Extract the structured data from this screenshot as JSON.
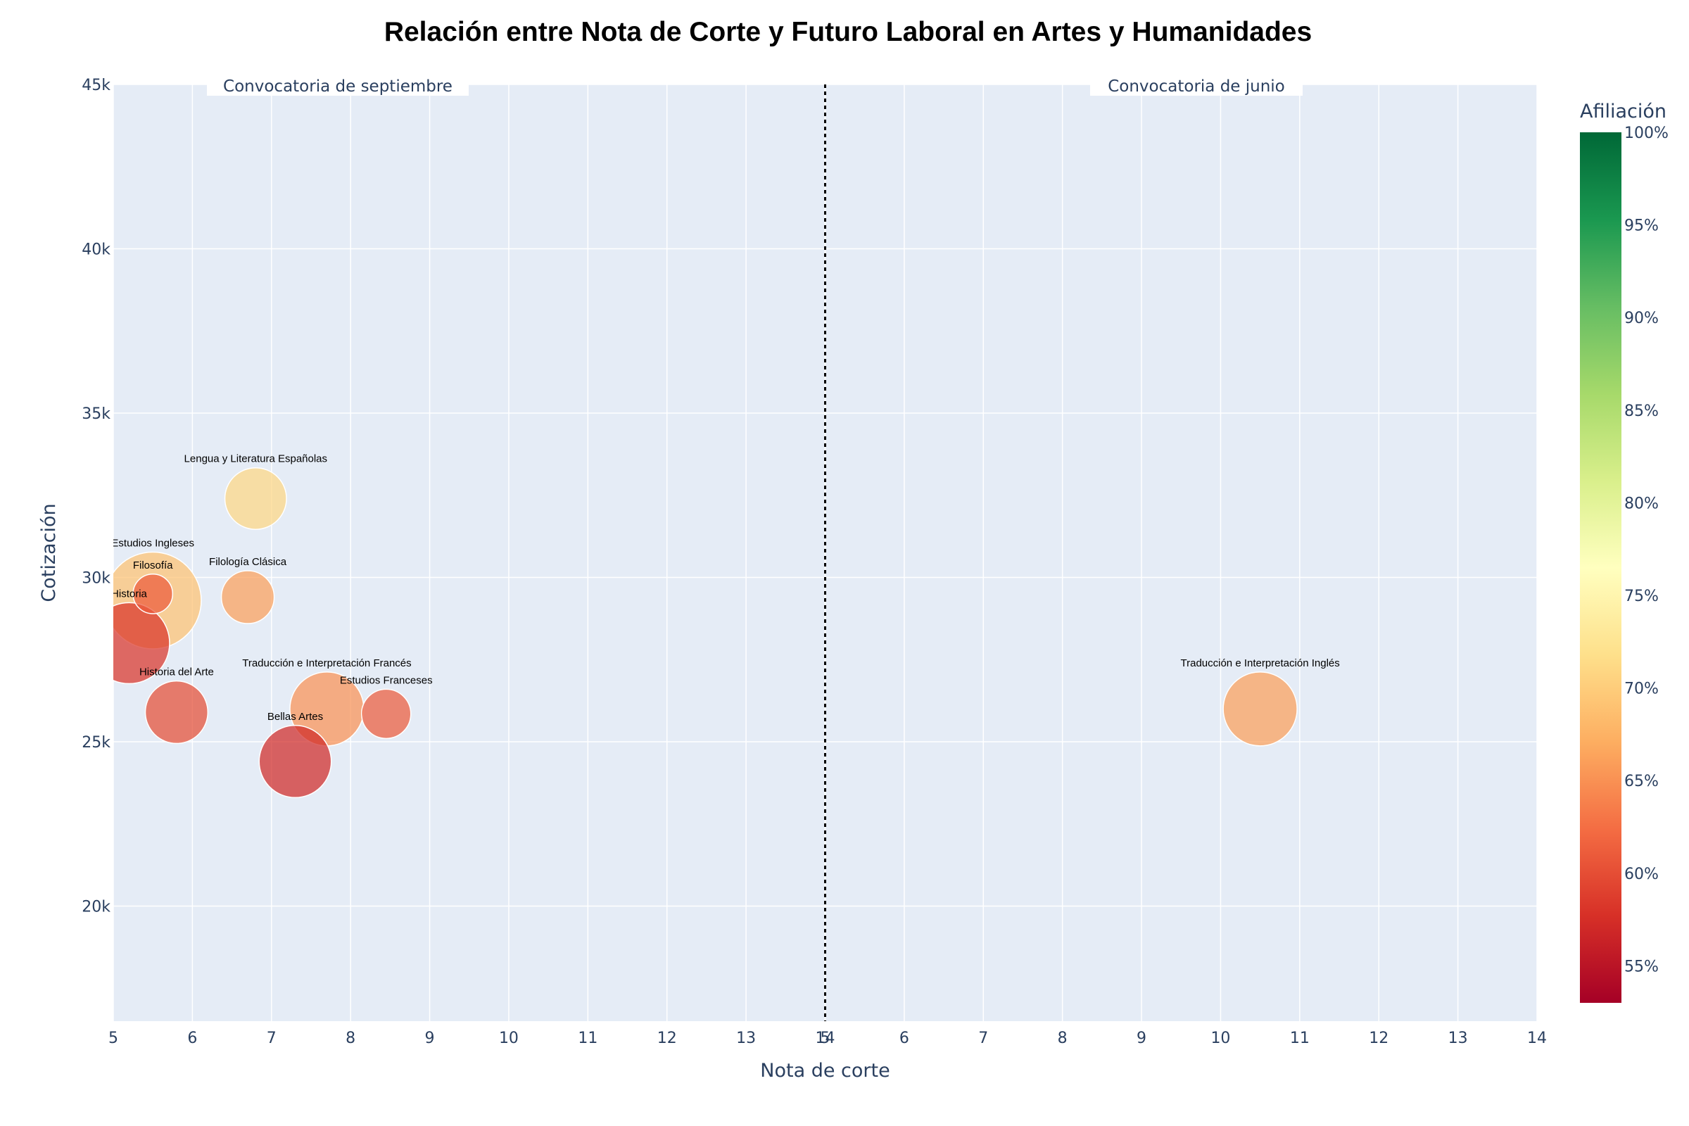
{
  "chart_data": {
    "type": "scatter",
    "title": "Relación entre Nota de Corte y Futuro Laboral en Artes y Humanidades",
    "xlabel": "Nota de corte",
    "ylabel": "Cotización",
    "x_tick_labels": [
      "5",
      "6",
      "7",
      "8",
      "9",
      "10",
      "11",
      "12",
      "13",
      "14",
      "5",
      "6",
      "7",
      "8",
      "9",
      "10",
      "11",
      "12",
      "13",
      "14"
    ],
    "y_ticks": [
      20000,
      25000,
      30000,
      35000,
      40000,
      45000
    ],
    "y_tick_labels": [
      "20k",
      "25k",
      "30k",
      "35k",
      "40k",
      "45k"
    ],
    "ylim": [
      16500,
      45000
    ],
    "sections": [
      {
        "label": "Convocatoria de septiembre",
        "xlim": [
          5,
          14
        ]
      },
      {
        "label": "Convocatoria de junio",
        "xlim": [
          5,
          14
        ]
      }
    ],
    "colorbar": {
      "title": "Afiliación",
      "min": 53,
      "max": 100,
      "ticks": [
        55,
        60,
        65,
        70,
        75,
        80,
        85,
        90,
        95,
        100
      ],
      "tick_labels": [
        "55%",
        "60%",
        "65%",
        "70%",
        "75%",
        "80%",
        "85%",
        "90%",
        "95%",
        "100%"
      ],
      "colorscale": [
        "#a50026",
        "#d73027",
        "#f46d43",
        "#fdae61",
        "#fee08b",
        "#ffffbf",
        "#d9ef8b",
        "#a6d96a",
        "#66bd63",
        "#1a9850",
        "#006837"
      ]
    },
    "points": [
      {
        "name": "Estudios Ingleses",
        "section": 0,
        "x": 5.5,
        "y": 29300,
        "affiliation": 69,
        "size": 110
      },
      {
        "name": "Filosofía",
        "section": 0,
        "x": 5.5,
        "y": 29500,
        "affiliation": 61,
        "size": 45
      },
      {
        "name": "Historia",
        "section": 0,
        "x": 5.2,
        "y": 28000,
        "affiliation": 58,
        "size": 92
      },
      {
        "name": "Lengua y Literatura Españolas",
        "section": 0,
        "x": 6.8,
        "y": 32400,
        "affiliation": 71,
        "size": 70
      },
      {
        "name": "Filología Clásica",
        "section": 0,
        "x": 6.7,
        "y": 29400,
        "affiliation": 66,
        "size": 60
      },
      {
        "name": "Historia del Arte",
        "section": 0,
        "x": 5.8,
        "y": 25900,
        "affiliation": 60,
        "size": 71
      },
      {
        "name": "Traducción e Interpretación Francés",
        "section": 0,
        "x": 7.7,
        "y": 26000,
        "affiliation": 65,
        "size": 84
      },
      {
        "name": "Estudios Franceses",
        "section": 0,
        "x": 8.45,
        "y": 25850,
        "affiliation": 61,
        "size": 56
      },
      {
        "name": "Bellas Artes",
        "section": 0,
        "x": 7.3,
        "y": 24400,
        "affiliation": 57,
        "size": 82
      },
      {
        "name": "Traducción e Interpretación Inglés",
        "section": 1,
        "x": 10.5,
        "y": 26000,
        "affiliation": 66,
        "size": 84
      }
    ]
  }
}
